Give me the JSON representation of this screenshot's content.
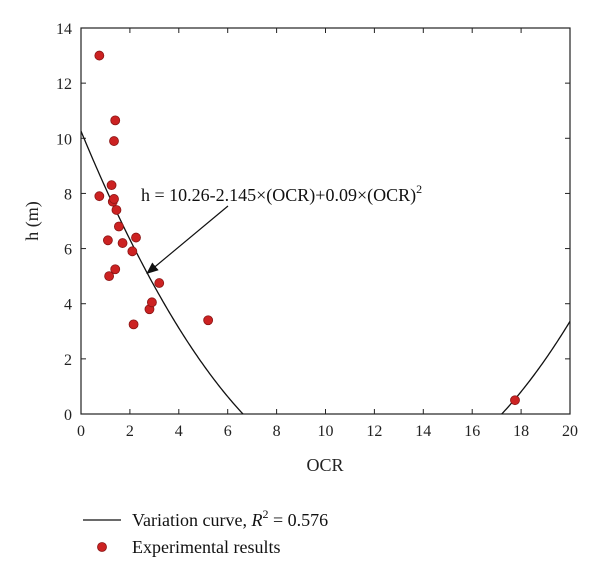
{
  "chart_data": {
    "type": "scatter",
    "xlabel": "OCR",
    "ylabel": "h (m)",
    "xlim": [
      0,
      20
    ],
    "ylim": [
      0,
      14
    ],
    "xticks": [
      0,
      2,
      4,
      6,
      8,
      10,
      12,
      14,
      16,
      18,
      20
    ],
    "yticks": [
      0,
      2,
      4,
      6,
      8,
      10,
      12,
      14
    ],
    "grid": false,
    "legend_position": "bottom",
    "series": [
      {
        "name": "Experimental results",
        "kind": "points",
        "color": "#cc2222",
        "points": [
          {
            "x": 0.75,
            "y": 13.0
          },
          {
            "x": 0.75,
            "y": 7.9
          },
          {
            "x": 1.1,
            "y": 6.3
          },
          {
            "x": 1.15,
            "y": 5.0
          },
          {
            "x": 1.25,
            "y": 8.3
          },
          {
            "x": 1.3,
            "y": 7.7
          },
          {
            "x": 1.35,
            "y": 7.8
          },
          {
            "x": 1.35,
            "y": 9.9
          },
          {
            "x": 1.4,
            "y": 10.65
          },
          {
            "x": 1.4,
            "y": 5.25
          },
          {
            "x": 1.45,
            "y": 7.4
          },
          {
            "x": 1.55,
            "y": 6.8
          },
          {
            "x": 1.7,
            "y": 6.2
          },
          {
            "x": 2.1,
            "y": 5.9
          },
          {
            "x": 2.15,
            "y": 3.25
          },
          {
            "x": 2.25,
            "y": 6.4
          },
          {
            "x": 2.8,
            "y": 3.8
          },
          {
            "x": 2.9,
            "y": 4.05
          },
          {
            "x": 3.2,
            "y": 4.75
          },
          {
            "x": 5.2,
            "y": 3.4
          },
          {
            "x": 17.75,
            "y": 0.5
          }
        ]
      },
      {
        "name": "Variation curve",
        "kind": "curve",
        "color": "#111111",
        "equation": {
          "a": 10.26,
          "b": -2.145,
          "c": 0.09
        },
        "r2_label": "R",
        "r2_exp": "2",
        "r2_value": " = 0.576"
      }
    ],
    "annotations": [
      {
        "text": "h = 10.26-2.145×(OCR)+0.09×(OCR)",
        "superscript": "2",
        "arrow_to": {
          "x": 2.7,
          "y": 5.1
        }
      }
    ],
    "legend": {
      "curve_label": "Variation curve, ",
      "points_label": "Experimental results"
    }
  }
}
